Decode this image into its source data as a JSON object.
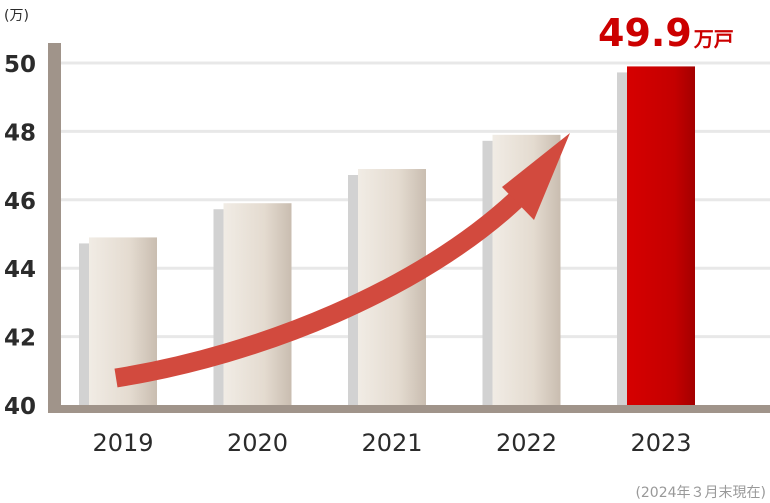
{
  "chart_data": {
    "type": "bar",
    "y_unit": "(万)",
    "categories": [
      "2019",
      "2020",
      "2021",
      "2022",
      "2023"
    ],
    "values": [
      44.9,
      45.9,
      46.9,
      47.9,
      49.9
    ],
    "ylim": [
      40,
      50
    ],
    "yticks": [
      "40",
      "42",
      "44",
      "46",
      "48",
      "50"
    ],
    "highlight": {
      "value": "49.9",
      "unit": "万戸"
    },
    "note": "(2024年３月末現在)",
    "grid": true,
    "colors": {
      "bar": "#e6ddd2",
      "bar_shadow": "#d2d2d2",
      "highlight_bar": "#cc0000",
      "axis": "#a0948a",
      "arrow": "#d24a3e",
      "grid": "#e8e8e8"
    }
  }
}
